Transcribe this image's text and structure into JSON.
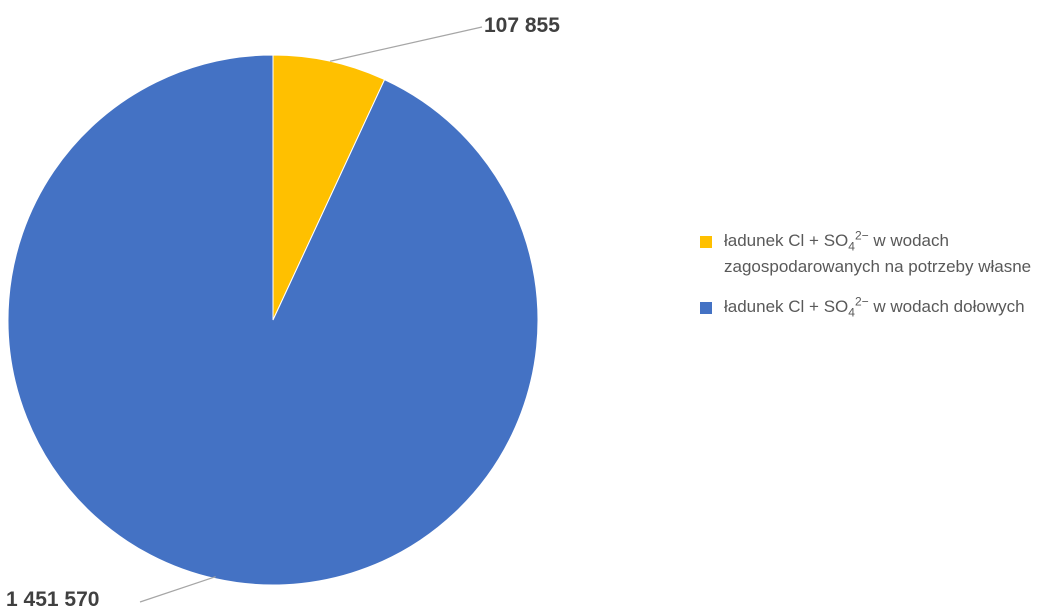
{
  "chart_data": {
    "type": "pie",
    "title": "",
    "legend_position": "right",
    "slices": [
      {
        "value": 107855,
        "label": "107 855",
        "color": "#FFC000",
        "legend": {
          "pre": "ładunek Cl + SO",
          "sub": "4",
          "sup": "2−",
          "post": " w wodach zagospodarowanych na potrzeby własne"
        }
      },
      {
        "value": 1451570,
        "label": "1 451 570",
        "color": "#4472C4",
        "legend": {
          "pre": "ładunek Cl + SO",
          "sub": "4",
          "sup": "2−",
          "post": " w wodach dołowych"
        }
      }
    ]
  }
}
